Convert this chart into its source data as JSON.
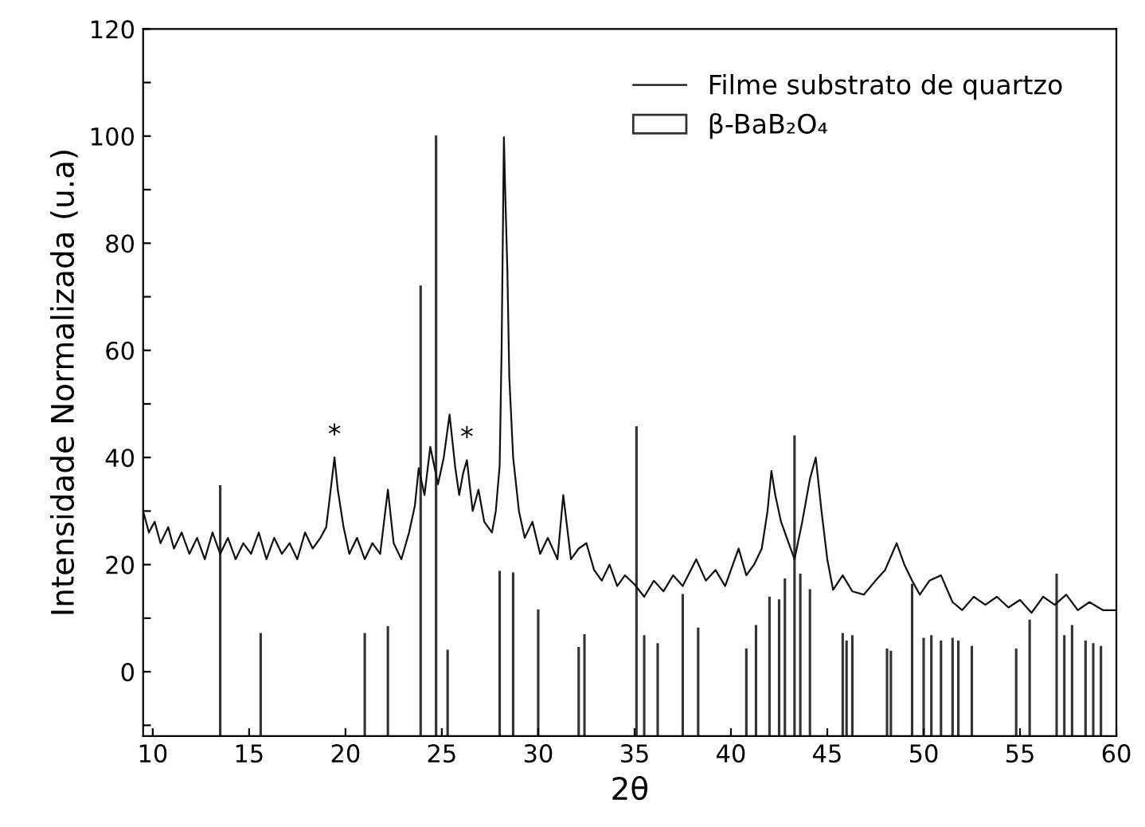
{
  "chart_data": {
    "type": "line",
    "xlabel": "2θ",
    "ylabel": "Intensidade Normalizada (u.a)",
    "xlim": [
      9.5,
      60
    ],
    "ylim": [
      -12,
      120
    ],
    "xticks": [
      10,
      15,
      20,
      25,
      30,
      35,
      40,
      45,
      50,
      55,
      60
    ],
    "yticks": [
      0,
      20,
      40,
      60,
      80,
      100,
      120,
      {
        "value": -10,
        "label": null
      },
      {
        "value": 10,
        "label": null
      },
      {
        "value": 30,
        "label": null
      },
      {
        "value": 50,
        "label": null
      },
      {
        "value": 70,
        "label": null
      },
      {
        "value": 90,
        "label": null
      },
      {
        "value": 110,
        "label": null
      }
    ],
    "grid": false,
    "legend": "top right",
    "series": [
      {
        "name": "Filme substrato de quartzo",
        "color": "#111111",
        "x": [
          9.5,
          9.8,
          10.1,
          10.4,
          10.8,
          11.1,
          11.5,
          11.9,
          12.3,
          12.7,
          13.1,
          13.5,
          13.9,
          14.3,
          14.7,
          15.1,
          15.5,
          15.9,
          16.3,
          16.7,
          17.1,
          17.5,
          17.9,
          18.3,
          18.7,
          19.0,
          19.2,
          19.43,
          19.6,
          19.9,
          20.2,
          20.6,
          21.0,
          21.4,
          21.8,
          22.2,
          22.5,
          22.9,
          23.3,
          23.6,
          23.8,
          24.1,
          24.4,
          24.8,
          25.1,
          25.4,
          25.7,
          25.9,
          26.1,
          26.3,
          26.6,
          26.9,
          27.2,
          27.6,
          27.8,
          28.0,
          28.1,
          28.22,
          28.3,
          28.4,
          28.5,
          28.7,
          29.0,
          29.3,
          29.7,
          30.1,
          30.5,
          31.0,
          31.3,
          31.7,
          32.1,
          32.5,
          32.9,
          33.3,
          33.7,
          34.1,
          34.5,
          35.0,
          35.5,
          36.0,
          36.5,
          37.0,
          37.5,
          38.2,
          38.7,
          39.2,
          39.7,
          40.0,
          40.4,
          40.8,
          41.2,
          41.6,
          41.9,
          42.1,
          42.3,
          42.6,
          43.0,
          43.3,
          43.7,
          44.1,
          44.4,
          44.7,
          45.0,
          45.3,
          45.8,
          46.3,
          46.9,
          47.5,
          48.0,
          48.6,
          49.0,
          49.4,
          49.8,
          50.3,
          50.9,
          51.5,
          52.0,
          52.6,
          53.2,
          53.8,
          54.4,
          55.0,
          55.6,
          56.2,
          56.8,
          57.4,
          58.0,
          58.6,
          59.3,
          60.0
        ],
        "values": [
          30,
          26,
          28,
          24,
          27,
          23,
          26,
          22,
          25,
          21,
          26,
          22,
          25,
          21,
          24,
          22,
          26,
          21,
          25,
          22,
          24,
          21,
          26,
          23,
          25,
          27,
          33,
          40,
          34,
          27,
          22,
          25,
          21,
          24,
          22,
          34,
          24,
          21,
          26,
          31,
          38,
          33,
          42,
          35,
          40,
          48,
          38,
          33,
          37,
          39.5,
          30,
          34,
          28,
          26,
          30,
          38.5,
          60,
          99.8,
          88,
          75,
          55,
          40,
          30,
          25,
          28,
          22,
          25,
          21,
          33,
          21,
          23,
          24,
          19,
          17,
          20,
          16,
          18,
          16.3,
          14,
          17,
          15,
          18,
          16,
          21,
          17,
          19,
          16,
          19,
          23,
          18,
          20,
          23,
          30,
          37.5,
          33,
          28,
          24,
          21,
          28,
          36,
          40,
          30,
          21,
          15.3,
          18,
          15,
          14.4,
          17,
          19,
          24,
          20,
          17,
          14.4,
          17,
          18,
          13,
          11.5,
          14,
          12.5,
          14,
          12,
          13.4,
          11,
          14,
          12.5,
          14.4,
          11.5,
          13,
          11.5,
          11.5
        ]
      },
      {
        "name": "β-BaB₂O₄",
        "type": "bar",
        "color": "#333333",
        "x": [
          13.5,
          15.6,
          21.0,
          22.2,
          23.9,
          24.7,
          25.3,
          28.0,
          28.7,
          30.0,
          32.1,
          32.4,
          35.1,
          35.5,
          36.2,
          37.5,
          38.3,
          40.8,
          41.3,
          42.0,
          42.5,
          42.8,
          43.3,
          43.6,
          44.1,
          45.8,
          46.0,
          46.3,
          48.1,
          48.3,
          49.4,
          50.0,
          50.4,
          50.9,
          51.5,
          51.8,
          52.5,
          54.8,
          55.5,
          56.9,
          57.3,
          57.7,
          58.4,
          58.8,
          59.2
        ],
        "base": [
          -12,
          -12,
          -12,
          -12,
          -12,
          -12,
          -12,
          -12,
          -12,
          -12,
          -12,
          -12,
          -12,
          -12,
          -12,
          -12,
          -12,
          -12,
          -12,
          -12,
          -12,
          -12,
          -12,
          -12,
          -12,
          -12,
          -12,
          -12,
          -12,
          -12,
          -12,
          -12,
          -12,
          -12,
          -12,
          -12,
          -12,
          -12,
          -12,
          -12,
          -12,
          -12,
          -12,
          -12,
          -12
        ],
        "values": [
          46.7,
          19.1,
          19.1,
          20.4,
          84,
          112,
          16,
          30.7,
          30.4,
          23.5,
          16.5,
          18.9,
          57.7,
          18.7,
          17.2,
          26.4,
          20.1,
          16.2,
          20.6,
          25.9,
          25.4,
          29.3,
          56,
          30.2,
          27.3,
          19.1,
          17.7,
          18.7,
          16.2,
          15.8,
          28.3,
          18.2,
          18.7,
          17.7,
          18.2,
          17.7,
          16.7,
          16.2,
          21.6,
          30.2,
          18.7,
          20.6,
          17.7,
          17.2,
          16.7
        ]
      }
    ],
    "annotations": [
      {
        "text": "*",
        "x": 19.43,
        "y": 40
      },
      {
        "text": "*",
        "x": 26.3,
        "y": 39.5
      }
    ]
  }
}
